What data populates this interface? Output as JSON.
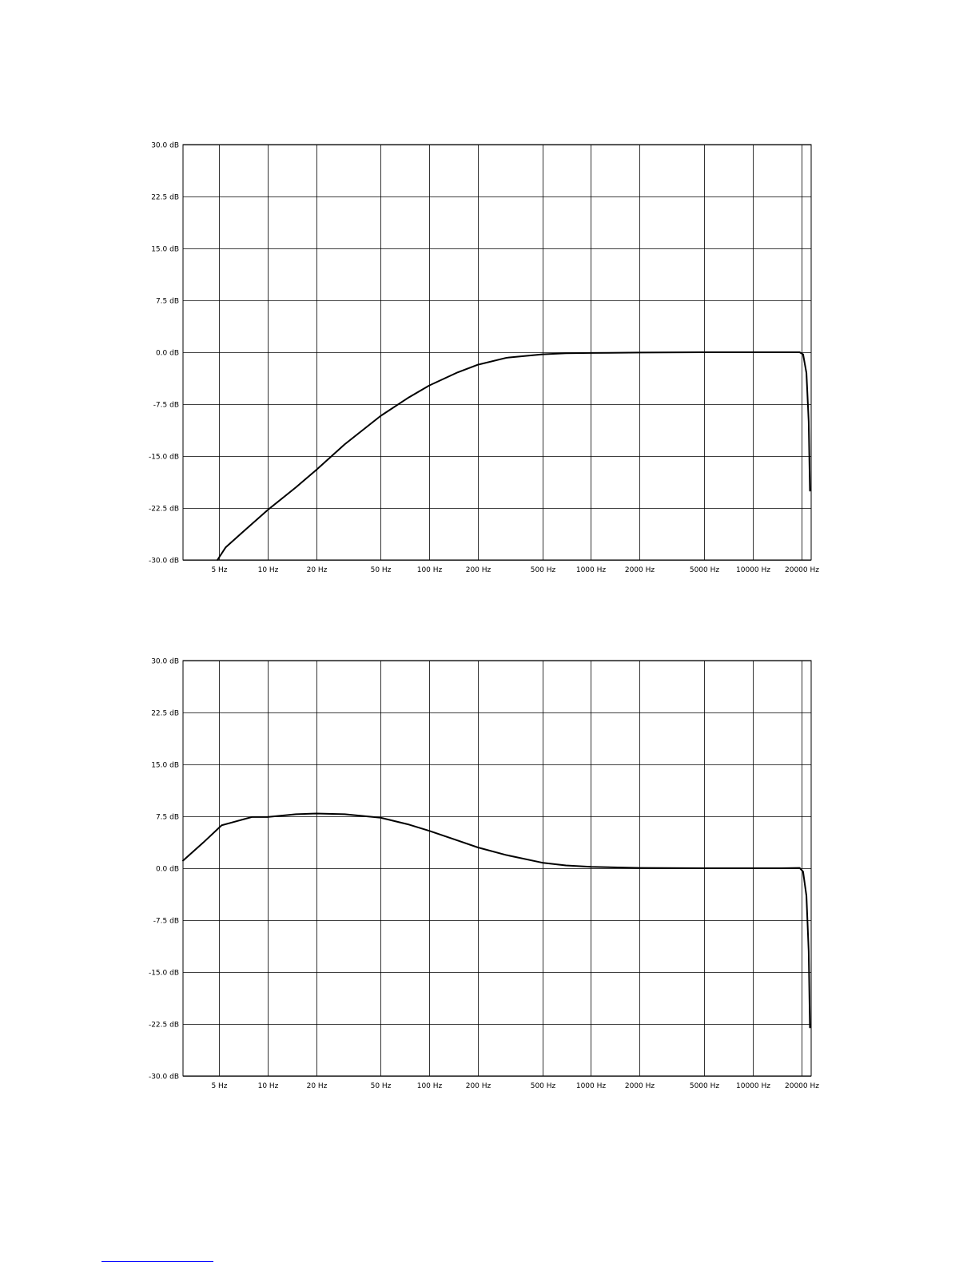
{
  "colors": {
    "background": "#ffffff",
    "grid": "#000000",
    "curve": "#000000",
    "footer_rule": "#0000ff"
  },
  "chart_data": [
    {
      "type": "line",
      "x_scale": "log",
      "xlim": [
        3,
        23000
      ],
      "ylim": [
        -30,
        30
      ],
      "grid": true,
      "legend": "none",
      "y_ticks": [
        30,
        22.5,
        15,
        7.5,
        0,
        -7.5,
        -15,
        -22.5,
        -30
      ],
      "y_tick_labels": [
        "30.0 dB",
        "22.5 dB",
        "15.0 dB",
        "7.5 dB",
        "0.0 dB",
        "-7.5 dB",
        "-15.0 dB",
        "-22.5 dB",
        "-30.0 dB"
      ],
      "x_ticks": [
        5,
        10,
        20,
        50,
        100,
        200,
        500,
        1000,
        2000,
        5000,
        10000,
        20000
      ],
      "x_tick_labels": [
        "5 Hz",
        "10 Hz",
        "20 Hz",
        "50 Hz",
        "100 Hz",
        "200 Hz",
        "500 Hz",
        "1000 Hz",
        "2000 Hz",
        "5000 Hz",
        "10000 Hz",
        "20000 Hz"
      ],
      "series": [
        {
          "x": [
            4.9,
            5.5,
            7,
            10,
            15,
            20,
            30,
            50,
            75,
            100,
            150,
            200,
            300,
            500,
            700,
            1000,
            2000,
            5000,
            10000,
            15000,
            19500,
            20500,
            21500,
            22200,
            22600
          ],
          "y": [
            -30,
            -28.2,
            -26,
            -22.8,
            -19.5,
            -17,
            -13.3,
            -9.2,
            -6.5,
            -4.8,
            -2.9,
            -1.8,
            -0.8,
            -0.3,
            -0.15,
            -0.1,
            -0.05,
            0,
            0,
            0,
            0,
            -0.3,
            -3,
            -10,
            -20
          ]
        }
      ]
    },
    {
      "type": "line",
      "x_scale": "log",
      "xlim": [
        3,
        23000
      ],
      "ylim": [
        -30,
        30
      ],
      "grid": true,
      "legend": "none",
      "y_ticks": [
        30,
        22.5,
        15,
        7.5,
        0,
        -7.5,
        -15,
        -22.5,
        -30
      ],
      "y_tick_labels": [
        "30.0 dB",
        "22.5 dB",
        "15.0 dB",
        "7.5 dB",
        "0.0 dB",
        "-7.5 dB",
        "-15.0 dB",
        "-22.5 dB",
        "-30.0 dB"
      ],
      "x_ticks": [
        5,
        10,
        20,
        50,
        100,
        200,
        500,
        1000,
        2000,
        5000,
        10000,
        20000
      ],
      "x_tick_labels": [
        "5 Hz",
        "10 Hz",
        "20 Hz",
        "50 Hz",
        "100 Hz",
        "200 Hz",
        "500 Hz",
        "1000 Hz",
        "2000 Hz",
        "5000 Hz",
        "10000 Hz",
        "20000 Hz"
      ],
      "series": [
        {
          "x": [
            3,
            4,
            5.2,
            6,
            8,
            10,
            15,
            20,
            30,
            50,
            75,
            100,
            150,
            200,
            300,
            500,
            700,
            1000,
            2000,
            5000,
            10000,
            15000,
            19500,
            20500,
            21500,
            22200,
            22600
          ],
          "y": [
            1.1,
            3.7,
            6.2,
            6.6,
            7.4,
            7.4,
            7.8,
            7.9,
            7.8,
            7.3,
            6.3,
            5.4,
            4.0,
            3.0,
            1.9,
            0.8,
            0.4,
            0.2,
            0.05,
            0,
            0,
            0,
            0.05,
            -0.5,
            -4,
            -12,
            -23
          ]
        }
      ]
    }
  ]
}
